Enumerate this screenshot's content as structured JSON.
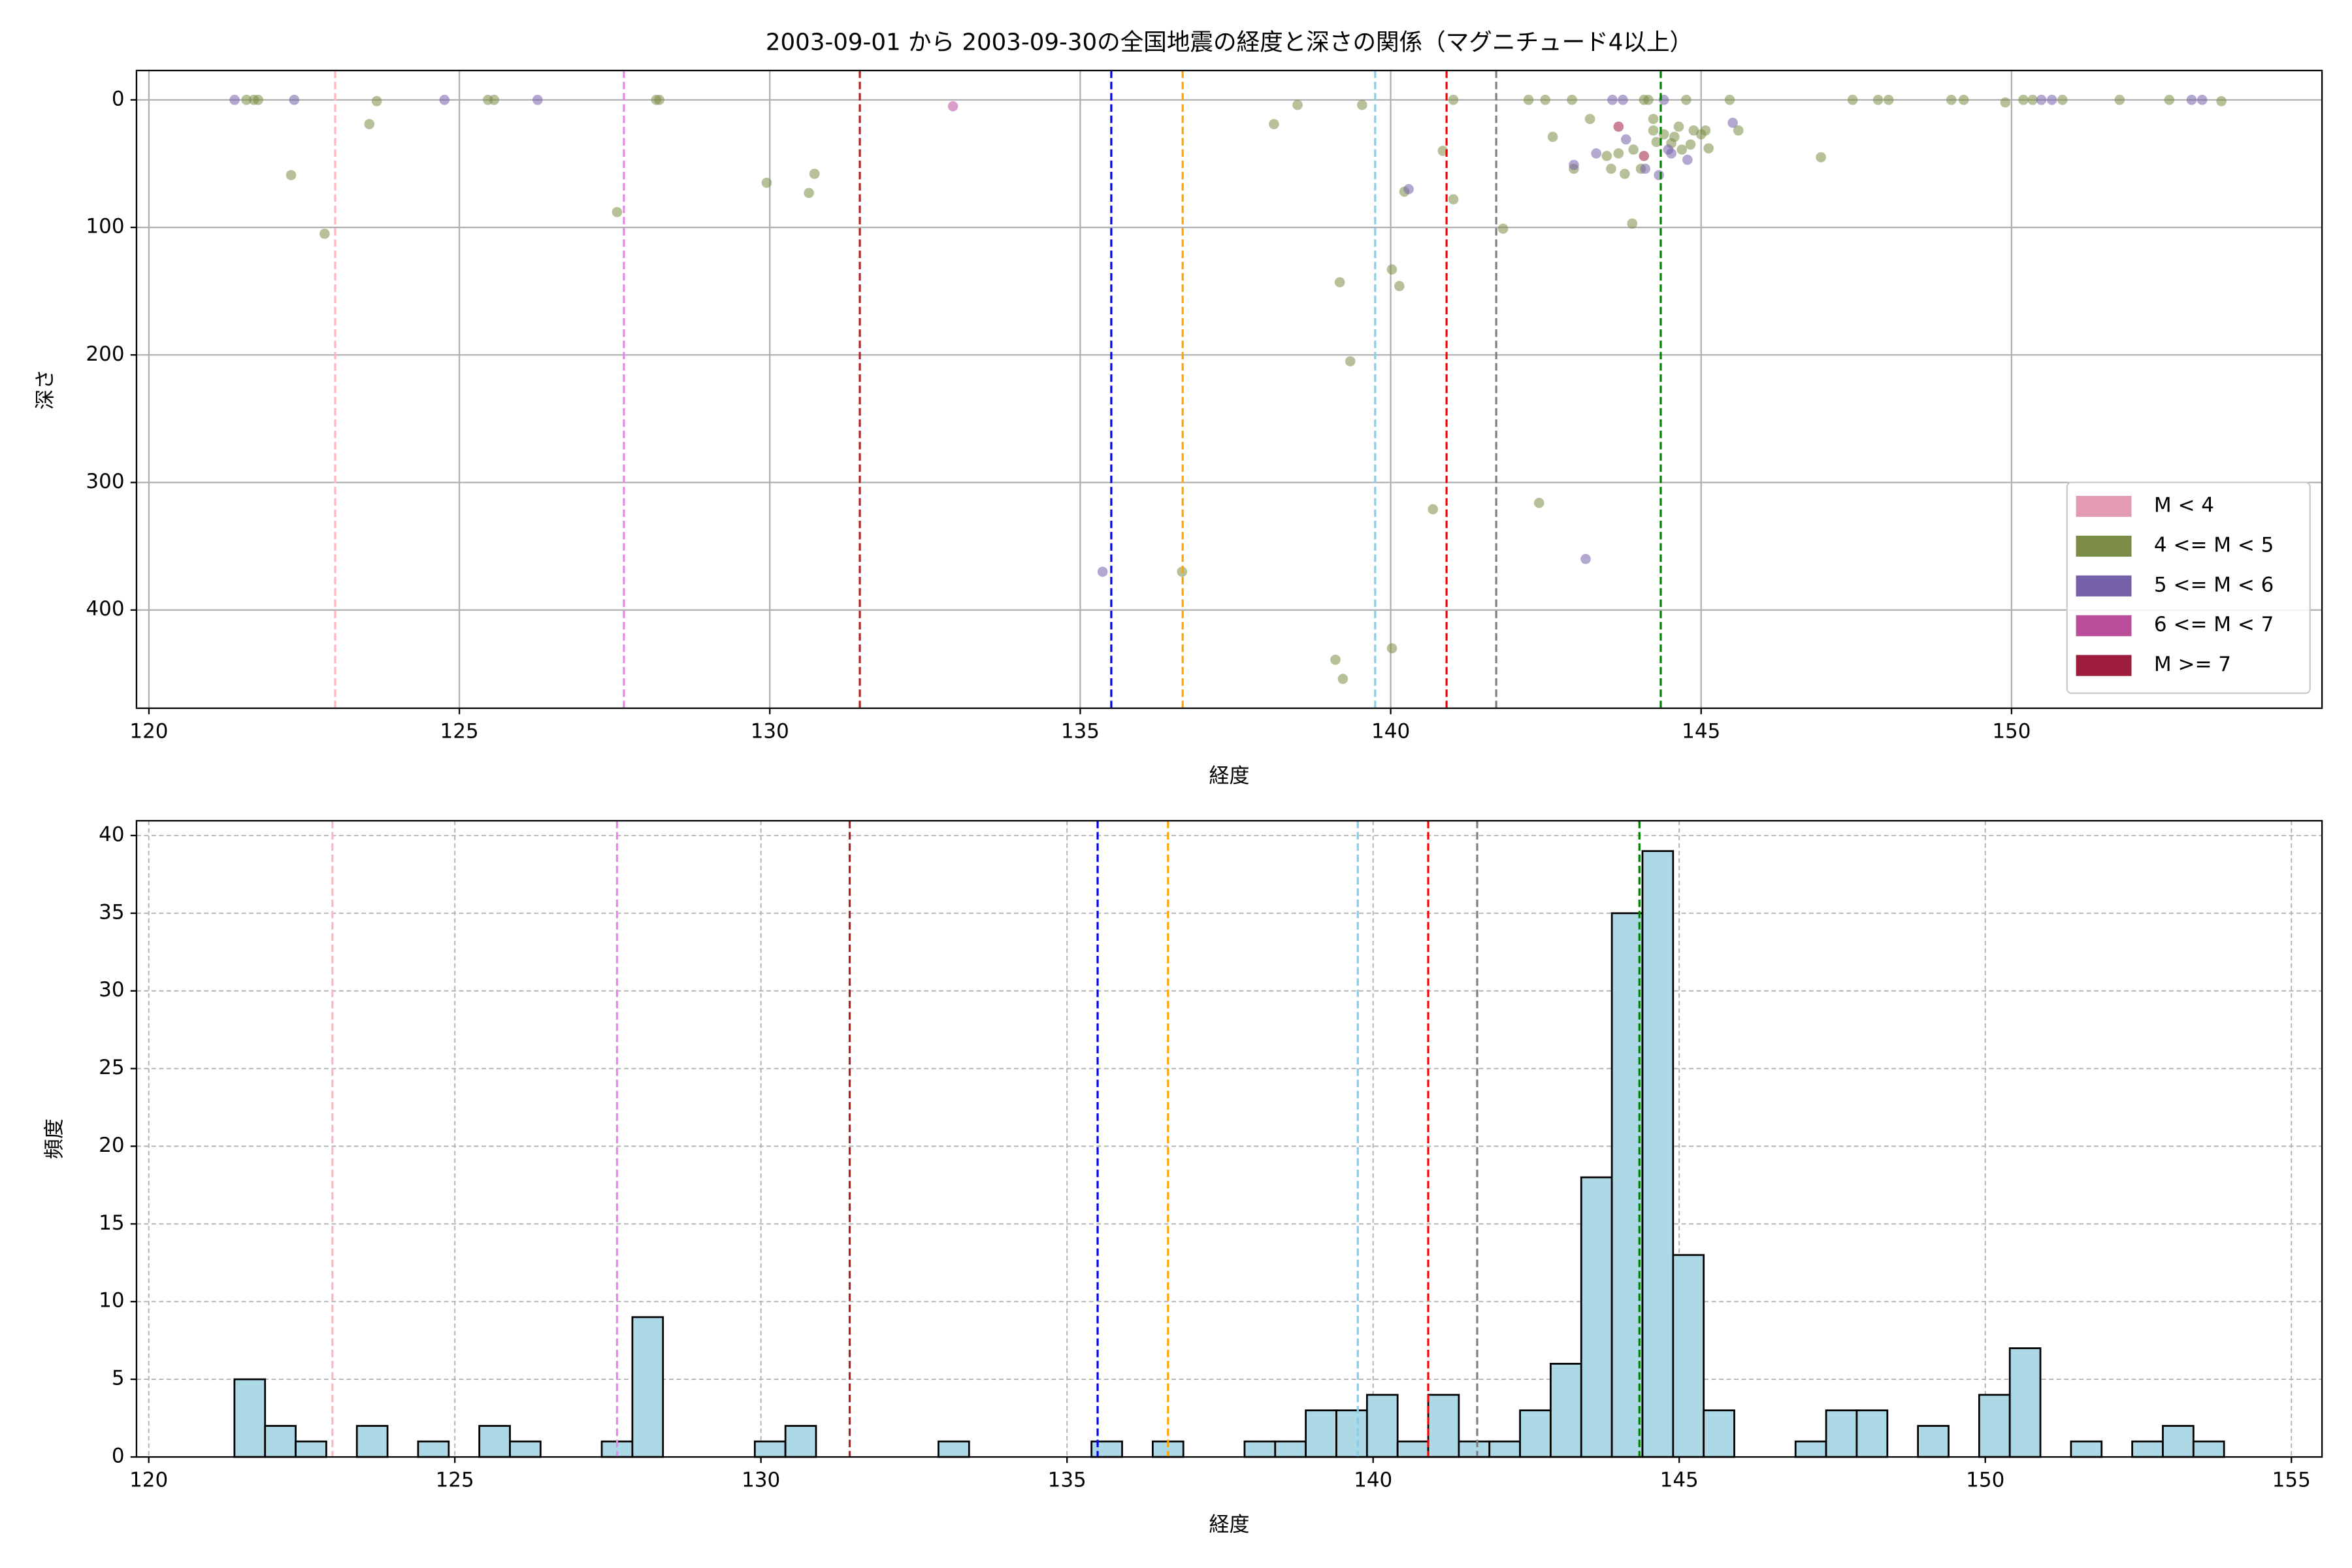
{
  "chart_data": [
    {
      "type": "scatter",
      "title": "2003-09-01 から 2003-09-30の全国地震の経度と深さの関係（マグニチュード4以上）",
      "x_label": "経度",
      "y_label": "深さ",
      "xlim": [
        119.8,
        155.0
      ],
      "xticks": [
        120,
        125,
        130,
        135,
        140,
        145,
        150
      ],
      "ylim": [
        -23,
        477
      ],
      "yticks": [
        0,
        100,
        200,
        300,
        400
      ],
      "y_inverted": true,
      "grid": true,
      "grid_style": "solid",
      "legend": "lower right",
      "alpha": 0.55,
      "vlines": [
        {
          "x": 123.0,
          "color": "#ffb6c1"
        },
        {
          "x": 127.65,
          "color": "#ee82ee"
        },
        {
          "x": 131.45,
          "color": "#b22222"
        },
        {
          "x": 135.5,
          "color": "#0000ff"
        },
        {
          "x": 136.65,
          "color": "#ffa500"
        },
        {
          "x": 139.75,
          "color": "#87ceeb"
        },
        {
          "x": 140.9,
          "color": "#ff0000"
        },
        {
          "x": 141.7,
          "color": "#808080"
        },
        {
          "x": 144.35,
          "color": "#008000"
        }
      ],
      "series": [
        {
          "name": "M < 4",
          "color": "#e39ab5",
          "x": [],
          "values": []
        },
        {
          "name": "4 <= M < 5",
          "color": "#7a8c45",
          "x": [
            121.57,
            121.69,
            121.76,
            122.29,
            122.83,
            123.55,
            123.67,
            125.46,
            125.56,
            127.54,
            128.17,
            128.22,
            129.95,
            130.63,
            130.72,
            138.12,
            138.5,
            139.54,
            139.18,
            139.35,
            140.02,
            140.14,
            140.22,
            140.84,
            141.01,
            141.01,
            141.81,
            140.02,
            139.11,
            139.23,
            140.68,
            136.64,
            142.39,
            142.22,
            142.49,
            142.61,
            142.92,
            142.95,
            143.21,
            143.55,
            143.77,
            143.89,
            144.03,
            144.08,
            144.15,
            144.23,
            144.23,
            144.28,
            144.4,
            144.57,
            144.64,
            144.76,
            144.88,
            145.0,
            145.07,
            145.12,
            145.46,
            145.6,
            146.93,
            147.44,
            147.85,
            148.02,
            149.03,
            149.23,
            149.9,
            150.19,
            150.34,
            150.82,
            151.74,
            152.54,
            153.38,
            143.48,
            143.67,
            143.91,
            144.52,
            144.69,
            144.83
          ],
          "values": [
            0,
            0,
            0,
            59,
            105,
            19,
            1,
            0,
            0,
            88,
            0,
            0,
            65,
            73,
            58,
            19,
            4,
            4,
            143,
            205,
            133,
            146,
            72,
            40,
            78,
            0,
            101,
            430,
            439,
            454,
            321,
            370,
            316,
            0,
            0,
            29,
            0,
            54,
            15,
            54,
            58,
            97,
            54,
            0,
            0,
            15,
            24,
            33,
            27,
            29,
            21,
            0,
            24,
            27,
            24,
            38,
            0,
            24,
            45,
            0,
            0,
            0,
            0,
            0,
            2,
            0,
            0,
            0,
            0,
            0,
            1,
            44,
            42,
            39,
            34,
            39,
            35
          ]
        },
        {
          "name": "5 <= M < 6",
          "color": "#7560aa",
          "x": [
            121.38,
            122.34,
            124.76,
            126.26,
            135.36,
            140.29,
            142.95,
            143.14,
            143.31,
            143.57,
            143.74,
            143.79,
            144.4,
            144.47,
            144.32,
            144.52,
            144.78,
            145.51,
            150.48,
            150.65,
            152.9,
            153.07,
            144.1
          ],
          "values": [
            0,
            0,
            0,
            0,
            370,
            70,
            51,
            360,
            42,
            0,
            0,
            31,
            0,
            39,
            59,
            42,
            47,
            18,
            0,
            0,
            0,
            0,
            54
          ]
        },
        {
          "name": "6 <= M < 7",
          "color": "#b94f9b",
          "x": [
            132.95
          ],
          "values": [
            5
          ]
        },
        {
          "name": "M >= 7",
          "color": "#9e1d3e",
          "x": [
            143.67,
            144.08
          ],
          "values": [
            21,
            44
          ]
        }
      ]
    },
    {
      "type": "histogram",
      "x_label": "経度",
      "y_label": "頻度",
      "xlim": [
        119.8,
        155.5
      ],
      "xticks": [
        120,
        125,
        130,
        135,
        140,
        145,
        150,
        155
      ],
      "ylim": [
        0,
        40.95
      ],
      "yticks": [
        0,
        5,
        10,
        15,
        20,
        25,
        30,
        35,
        40
      ],
      "grid": true,
      "grid_style": "dashed",
      "color": "#add8e6",
      "edgecolor": "#000000",
      "vlines": [
        {
          "x": 123.0,
          "color": "#ffb6c1"
        },
        {
          "x": 127.65,
          "color": "#ee82ee"
        },
        {
          "x": 131.45,
          "color": "#b22222"
        },
        {
          "x": 135.5,
          "color": "#0000ff"
        },
        {
          "x": 136.65,
          "color": "#ffa500"
        },
        {
          "x": 139.75,
          "color": "#87ceeb"
        },
        {
          "x": 140.9,
          "color": "#ff0000"
        },
        {
          "x": 141.7,
          "color": "#808080"
        },
        {
          "x": 144.35,
          "color": "#008000"
        }
      ],
      "bins": [
        121.4,
        121.9,
        122.4,
        122.9,
        123.4,
        123.9,
        124.4,
        124.9,
        125.4,
        125.9,
        126.4,
        126.9,
        127.4,
        127.9,
        128.4,
        128.9,
        129.4,
        129.9,
        130.4,
        130.9,
        131.4,
        131.9,
        132.4,
        132.9,
        133.4,
        133.9,
        134.4,
        134.9,
        135.4,
        135.9,
        136.4,
        136.9,
        137.4,
        137.9,
        138.4,
        138.9,
        139.4,
        139.9,
        140.4,
        140.9,
        141.4,
        141.9,
        142.4,
        142.9,
        143.4,
        143.9,
        144.4,
        144.9,
        145.4,
        145.9,
        146.4,
        146.9,
        147.4,
        147.9,
        148.4,
        148.9,
        149.4,
        149.9,
        150.4,
        150.9,
        151.4,
        151.9,
        152.4,
        152.9,
        153.4,
        153.9
      ],
      "values": [
        5,
        2,
        1,
        0,
        2,
        0,
        1,
        0,
        2,
        1,
        0,
        0,
        1,
        9,
        0,
        0,
        0,
        1,
        2,
        0,
        0,
        0,
        0,
        1,
        0,
        0,
        0,
        0,
        1,
        0,
        1,
        0,
        0,
        1,
        1,
        3,
        3,
        4,
        1,
        4,
        1,
        1,
        3,
        6,
        18,
        35,
        39,
        13,
        3,
        0,
        0,
        1,
        3,
        3,
        0,
        2,
        0,
        4,
        7,
        0,
        1,
        0,
        1,
        2,
        1
      ]
    }
  ]
}
